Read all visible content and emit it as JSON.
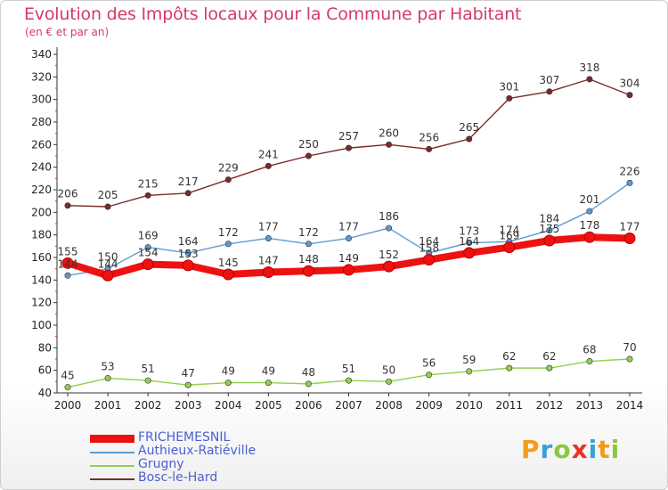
{
  "chart_data": {
    "type": "line",
    "title": "Evolution des Impôts locaux pour la Commune par Habitant",
    "subtitle": "(en € et par an)",
    "x": [
      2000,
      2001,
      2002,
      2003,
      2004,
      2005,
      2006,
      2007,
      2008,
      2009,
      2010,
      2011,
      2012,
      2013,
      2014
    ],
    "ylim": [
      40,
      340
    ],
    "yticks": [
      40,
      60,
      80,
      100,
      120,
      140,
      160,
      180,
      200,
      220,
      240,
      260,
      280,
      300,
      320,
      340
    ],
    "grid": false,
    "legend_position": "bottom-left",
    "series": [
      {
        "name": "FRICHEMESNIL",
        "color": "#ee1111",
        "emphasis": true,
        "values": [
          155,
          144,
          154,
          153,
          145,
          147,
          148,
          149,
          152,
          158,
          164,
          169,
          175,
          178,
          177
        ]
      },
      {
        "name": "Authieux-Ratiéville",
        "color": "#5b9bd5",
        "emphasis": false,
        "values": [
          144,
          150,
          169,
          164,
          172,
          177,
          172,
          177,
          186,
          164,
          173,
          174,
          184,
          201,
          226
        ]
      },
      {
        "name": "Grugny",
        "color": "#92d050",
        "emphasis": false,
        "values": [
          45,
          53,
          51,
          47,
          49,
          49,
          48,
          51,
          50,
          56,
          59,
          62,
          62,
          68,
          70
        ]
      },
      {
        "name": "Bosc-le-Hard",
        "color": "#7a2a2a",
        "emphasis": false,
        "values": [
          206,
          205,
          215,
          217,
          229,
          241,
          250,
          257,
          260,
          256,
          265,
          301,
          307,
          318,
          304
        ]
      }
    ]
  },
  "logo": {
    "text": "Proxiti",
    "letters": [
      {
        "ch": "P",
        "color": "#f39c1b"
      },
      {
        "ch": "r",
        "color": "#3aa0d8"
      },
      {
        "ch": "o",
        "color": "#8cc63f"
      },
      {
        "ch": "x",
        "color": "#e8332a"
      },
      {
        "ch": "i",
        "color": "#3aa0d8"
      },
      {
        "ch": "t",
        "color": "#f39c1b"
      },
      {
        "ch": "i",
        "color": "#8cc63f"
      }
    ]
  }
}
